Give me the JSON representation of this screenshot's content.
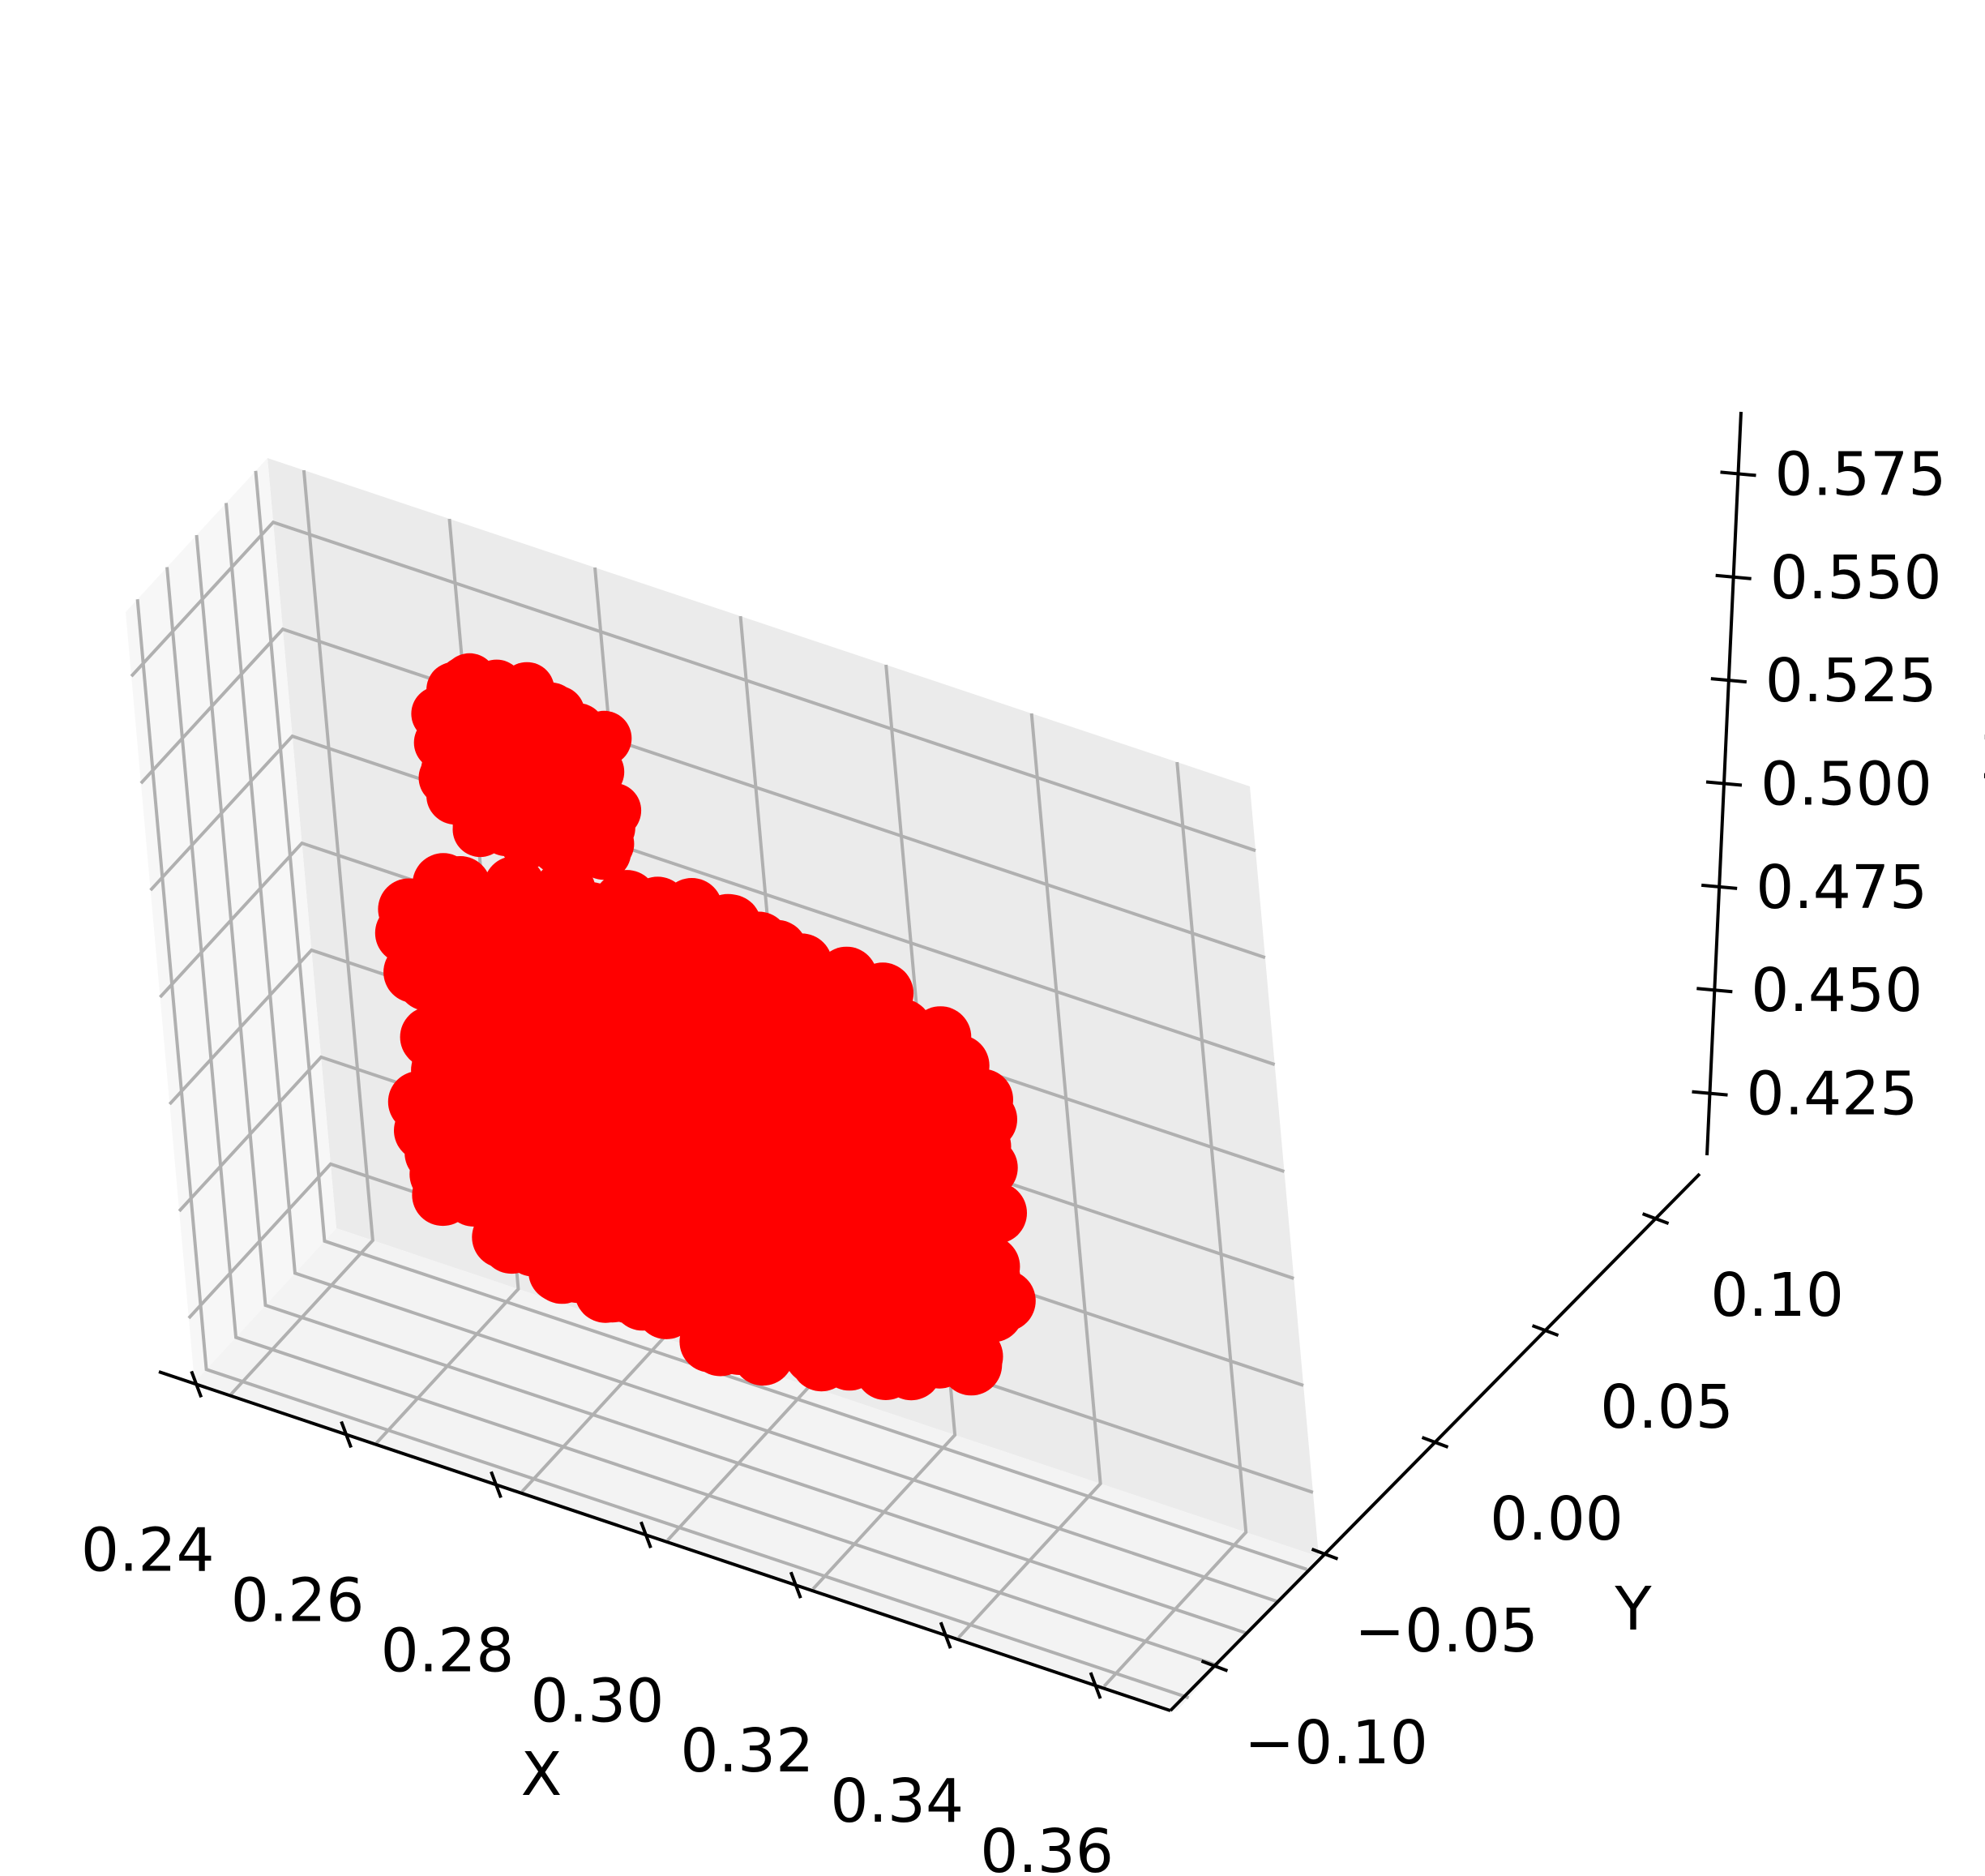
{
  "chart_data": {
    "type": "scatter",
    "projection": "3d",
    "title": "",
    "xlabel": "X",
    "ylabel": "Y",
    "zlabel": "Z",
    "grid": true,
    "marker_color": "#ff0000",
    "pane_color": "#f2f2f2",
    "grid_color": "#b0b0b0",
    "xlim": [
      0.235,
      0.37
    ],
    "ylim": [
      -0.12,
      0.12
    ],
    "zlim": [
      0.41,
      0.59
    ],
    "x_ticks": [
      0.24,
      0.26,
      0.28,
      0.3,
      0.32,
      0.34,
      0.36
    ],
    "x_tick_labels": [
      "0.24",
      "0.26",
      "0.28",
      "0.30",
      "0.32",
      "0.34",
      "0.36"
    ],
    "y_ticks": [
      -0.1,
      -0.05,
      0.0,
      0.05,
      0.1
    ],
    "y_tick_labels": [
      "−0.10",
      "−0.05",
      "0.00",
      "0.05",
      "0.10"
    ],
    "z_ticks": [
      0.425,
      0.45,
      0.475,
      0.5,
      0.525,
      0.55,
      0.575
    ],
    "z_tick_labels": [
      "0.425",
      "0.450",
      "0.475",
      "0.500",
      "0.525",
      "0.550",
      "0.575"
    ],
    "point_cloud_description": "dense cluster of red points forming a rounded blob"
  }
}
